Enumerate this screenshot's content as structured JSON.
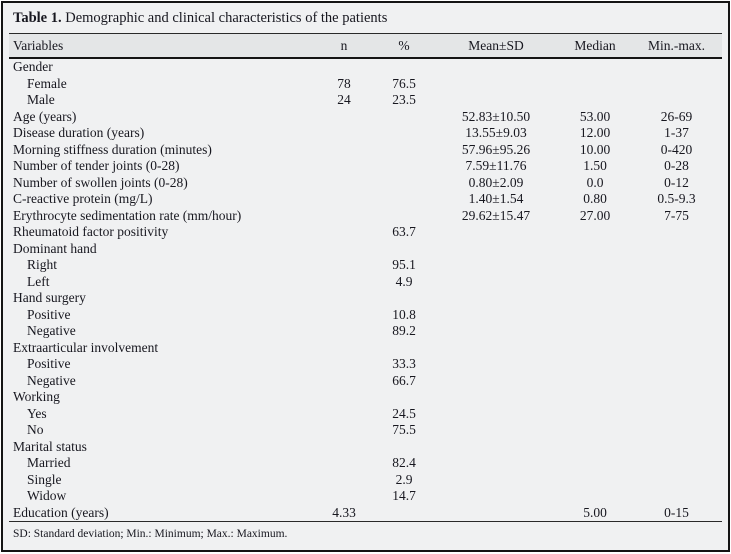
{
  "table": {
    "title_label": "Table 1.",
    "title_text": " Demographic and clinical characteristics of the patients",
    "columns": [
      "Variables",
      "n",
      "%",
      "Mean±SD",
      "Median",
      "Min.-max."
    ],
    "rows": [
      {
        "variable": "Gender",
        "indent": 0
      },
      {
        "variable": "Female",
        "indent": 1,
        "n": "78",
        "pct": "76.5"
      },
      {
        "variable": "Male",
        "indent": 1,
        "n": "24",
        "pct": "23.5"
      },
      {
        "variable": "Age (years)",
        "indent": 0,
        "mean_sd": "52.83±10.50",
        "median": "53.00",
        "min_max": "26-69"
      },
      {
        "variable": "Disease duration (years)",
        "indent": 0,
        "mean_sd": "13.55±9.03",
        "median": "12.00",
        "min_max": "1-37"
      },
      {
        "variable": "Morning stiffness duration (minutes)",
        "indent": 0,
        "mean_sd": "57.96±95.26",
        "median": "10.00",
        "min_max": "0-420"
      },
      {
        "variable": "Number of tender joints (0-28)",
        "indent": 0,
        "mean_sd": "7.59±11.76",
        "median": "1.50",
        "min_max": "0-28"
      },
      {
        "variable": "Number of swollen joints (0-28)",
        "indent": 0,
        "mean_sd": "0.80±2.09",
        "median": "0.0",
        "min_max": "0-12"
      },
      {
        "variable": "C-reactive protein (mg/L)",
        "indent": 0,
        "mean_sd": "1.40±1.54",
        "median": "0.80",
        "min_max": "0.5-9.3"
      },
      {
        "variable": "Erythrocyte sedimentation rate (mm/hour)",
        "indent": 0,
        "mean_sd": "29.62±15.47",
        "median": "27.00",
        "min_max": "7-75"
      },
      {
        "variable": "Rheumatoid factor positivity",
        "indent": 0,
        "pct": "63.7"
      },
      {
        "variable": "Dominant hand",
        "indent": 0
      },
      {
        "variable": "Right",
        "indent": 1,
        "pct": "95.1"
      },
      {
        "variable": "Left",
        "indent": 1,
        "pct": "4.9"
      },
      {
        "variable": "Hand surgery",
        "indent": 0
      },
      {
        "variable": "Positive",
        "indent": 1,
        "pct": "10.8"
      },
      {
        "variable": "Negative",
        "indent": 1,
        "pct": "89.2"
      },
      {
        "variable": "Extraarticular involvement",
        "indent": 0
      },
      {
        "variable": "Positive",
        "indent": 1,
        "pct": "33.3"
      },
      {
        "variable": "Negative",
        "indent": 1,
        "pct": "66.7"
      },
      {
        "variable": "Working",
        "indent": 0
      },
      {
        "variable": "Yes",
        "indent": 1,
        "pct": "24.5"
      },
      {
        "variable": "No",
        "indent": 1,
        "pct": "75.5"
      },
      {
        "variable": "Marital status",
        "indent": 0
      },
      {
        "variable": "Married",
        "indent": 1,
        "pct": "82.4"
      },
      {
        "variable": "Single",
        "indent": 1,
        "pct": "2.9"
      },
      {
        "variable": "Widow",
        "indent": 1,
        "pct": "14.7"
      },
      {
        "variable": "Education (years)",
        "indent": 0,
        "n": "4.33",
        "median": "5.00",
        "min_max": "0-15"
      }
    ],
    "footnote": "SD: Standard deviation; Min.: Minimum; Max.: Maximum."
  },
  "colors": {
    "background": "#f0f1f2",
    "header_row_bg": "#e4e6e7",
    "border": "#141414",
    "text": "#17171f"
  }
}
